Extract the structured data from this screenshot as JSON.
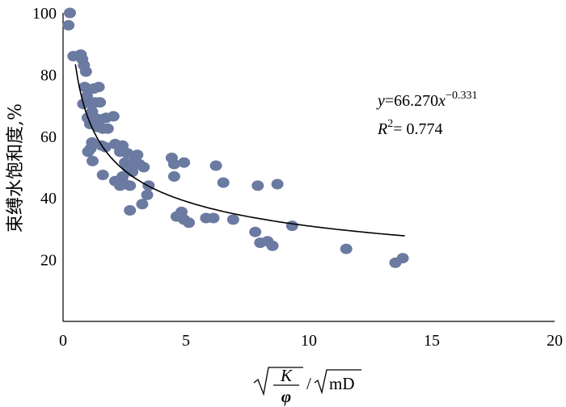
{
  "chart_data": {
    "type": "scatter",
    "xlim": [
      0,
      20
    ],
    "ylim": [
      0,
      100
    ],
    "x_ticks": [
      0,
      5,
      10,
      15,
      20
    ],
    "y_ticks": [
      20,
      40,
      60,
      80,
      100
    ],
    "ylabel": "束缚水饱和度,%",
    "xlabel": {
      "numerator": "K",
      "denominator": "φ",
      "unit": "/",
      "unit_root": "mD"
    },
    "grid": false,
    "point_color": "#6b7aa1",
    "trend_color": "#000000",
    "points": [
      [
        0.28,
        100.0
      ],
      [
        0.22,
        96.0
      ],
      [
        0.42,
        86.0
      ],
      [
        0.72,
        86.5
      ],
      [
        0.78,
        85.0
      ],
      [
        0.85,
        83.0
      ],
      [
        0.93,
        81.0
      ],
      [
        0.88,
        76.0
      ],
      [
        1.25,
        75.5
      ],
      [
        1.45,
        76.0
      ],
      [
        0.97,
        73.0
      ],
      [
        1.08,
        71.0
      ],
      [
        0.82,
        70.5
      ],
      [
        1.32,
        71.0
      ],
      [
        1.5,
        71.0
      ],
      [
        1.18,
        68.0
      ],
      [
        1.0,
        66.0
      ],
      [
        1.28,
        66.0
      ],
      [
        1.52,
        65.5
      ],
      [
        1.75,
        66.0
      ],
      [
        2.05,
        66.5
      ],
      [
        1.1,
        64.0
      ],
      [
        1.4,
        63.0
      ],
      [
        1.62,
        62.5
      ],
      [
        1.82,
        62.5
      ],
      [
        1.18,
        58.0
      ],
      [
        1.58,
        57.0
      ],
      [
        1.72,
        56.5
      ],
      [
        2.12,
        57.5
      ],
      [
        2.42,
        57.0
      ],
      [
        1.02,
        55.0
      ],
      [
        1.12,
        56.0
      ],
      [
        2.32,
        55.0
      ],
      [
        2.62,
        54.5
      ],
      [
        3.02,
        54.0
      ],
      [
        1.2,
        52.0
      ],
      [
        2.52,
        51.5
      ],
      [
        2.92,
        52.0
      ],
      [
        3.1,
        51.0
      ],
      [
        3.28,
        50.0
      ],
      [
        2.62,
        50.0
      ],
      [
        2.82,
        48.5
      ],
      [
        1.62,
        47.5
      ],
      [
        2.42,
        47.0
      ],
      [
        2.12,
        45.5
      ],
      [
        2.52,
        44.5
      ],
      [
        2.72,
        44.0
      ],
      [
        2.32,
        44.0
      ],
      [
        3.48,
        44.0
      ],
      [
        3.42,
        41.0
      ],
      [
        3.22,
        38.0
      ],
      [
        2.72,
        36.0
      ],
      [
        4.42,
        53.0
      ],
      [
        4.52,
        51.0
      ],
      [
        4.92,
        51.5
      ],
      [
        4.52,
        47.0
      ],
      [
        4.62,
        34.0
      ],
      [
        4.82,
        35.5
      ],
      [
        5.12,
        32.0
      ],
      [
        4.92,
        33.0
      ],
      [
        5.82,
        33.5
      ],
      [
        6.12,
        33.5
      ],
      [
        6.22,
        50.5
      ],
      [
        6.52,
        45.0
      ],
      [
        6.92,
        33.0
      ],
      [
        7.92,
        44.0
      ],
      [
        8.72,
        44.5
      ],
      [
        7.82,
        29.0
      ],
      [
        8.02,
        25.5
      ],
      [
        8.32,
        26.0
      ],
      [
        8.52,
        24.5
      ],
      [
        9.32,
        31.0
      ],
      [
        11.52,
        23.5
      ],
      [
        13.52,
        19.0
      ],
      [
        13.82,
        20.5
      ]
    ],
    "trend": {
      "a": 66.27,
      "b": -0.331,
      "x_from": 0.5,
      "x_to": 13.9
    },
    "annotation": {
      "eq_y": "y",
      "eq_mid": "=66.270",
      "eq_x": "x",
      "eq_exp": "−0.331",
      "r2_R": "R",
      "r2_sup": "2",
      "r2_val": "= 0.774"
    }
  }
}
